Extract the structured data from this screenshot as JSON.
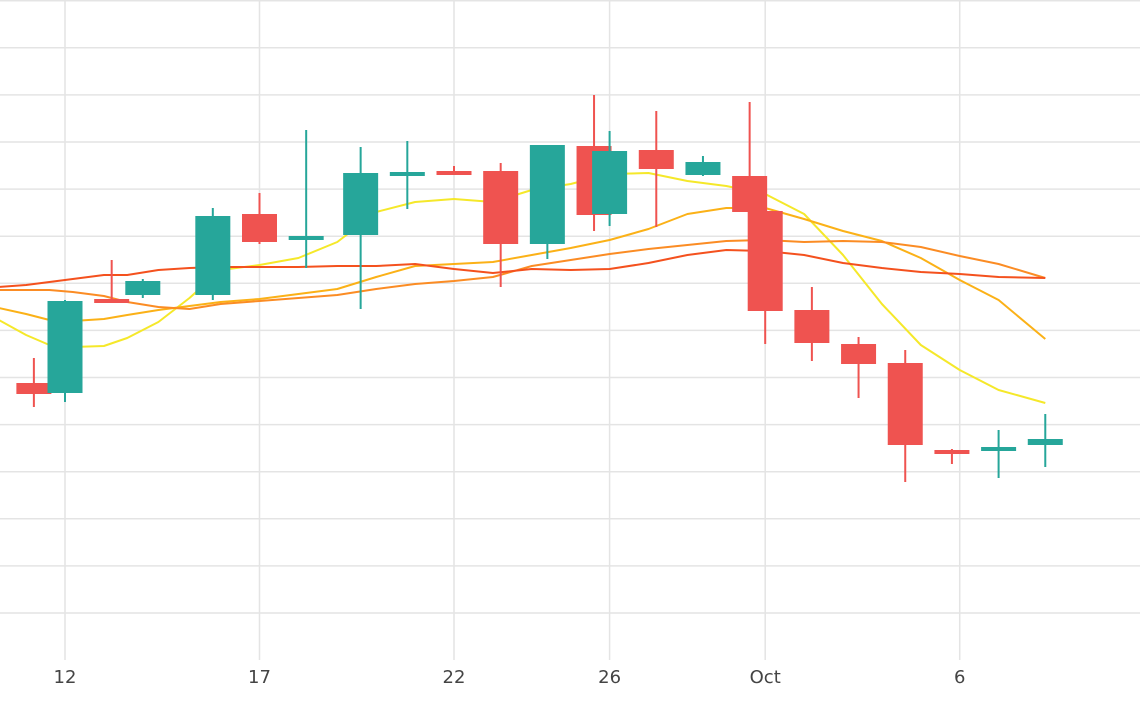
{
  "chart_data": {
    "type": "candlestick",
    "x_tick_labels": [
      "12",
      "17",
      "22",
      "26",
      "Oct",
      "6"
    ],
    "x_tick_days": [
      12,
      17,
      22,
      26,
      30,
      35
    ],
    "grid": true,
    "legend": "none",
    "colors": {
      "up": "#26a69a",
      "down": "#ef5350",
      "ma_fast": "#f5e82a",
      "ma_mid": "#fbb117",
      "ma_slow": "#fb8c24",
      "ma_slowest": "#f4511e",
      "grid": "#e4e4e4"
    },
    "ylim": [
      0,
      660
    ],
    "candles": [
      {
        "day": 11.2,
        "open": 277,
        "close": 266,
        "high": 302,
        "low": 253
      },
      {
        "day": 12,
        "open": 267,
        "close": 359,
        "high": 360,
        "low": 258
      },
      {
        "day": 13.2,
        "open": 361,
        "close": 359,
        "high": 400,
        "low": 358
      },
      {
        "day": 14,
        "open": 365,
        "close": 379,
        "high": 381,
        "low": 362
      },
      {
        "day": 15.8,
        "open": 365,
        "close": 444,
        "high": 452,
        "low": 360
      },
      {
        "day": 17,
        "open": 446,
        "close": 418,
        "high": 467,
        "low": 416
      },
      {
        "day": 18.2,
        "open": 421,
        "close": 424,
        "high": 530,
        "low": 392
      },
      {
        "day": 19.6,
        "open": 425,
        "close": 487,
        "high": 513,
        "low": 351
      },
      {
        "day": 20.8,
        "open": 486,
        "close": 488,
        "high": 519,
        "low": 451
      },
      {
        "day": 22,
        "open": 489,
        "close": 486,
        "high": 494,
        "low": 486
      },
      {
        "day": 23.2,
        "open": 489,
        "close": 416,
        "high": 497,
        "low": 373
      },
      {
        "day": 24.4,
        "open": 416,
        "close": 515,
        "high": 515,
        "low": 401
      },
      {
        "day": 25.6,
        "open": 514,
        "close": 445,
        "high": 565,
        "low": 429
      },
      {
        "day": 26,
        "open": 446,
        "close": 509,
        "high": 529,
        "low": 434
      },
      {
        "day": 27.2,
        "open": 510,
        "close": 491,
        "high": 549,
        "low": 433
      },
      {
        "day": 28.4,
        "open": 485,
        "close": 498,
        "high": 504,
        "low": 484
      },
      {
        "day": 29.6,
        "open": 484,
        "close": 448,
        "high": 558,
        "low": 419
      },
      {
        "day": 30,
        "open": 449,
        "close": 349,
        "high": 462,
        "low": 316
      },
      {
        "day": 31.2,
        "open": 350,
        "close": 317,
        "high": 373,
        "low": 299
      },
      {
        "day": 32.4,
        "open": 316,
        "close": 296,
        "high": 323,
        "low": 262
      },
      {
        "day": 33.6,
        "open": 297,
        "close": 215,
        "high": 310,
        "low": 178
      },
      {
        "day": 34.8,
        "open": 210,
        "close": 206,
        "high": 211,
        "low": 196
      },
      {
        "day": 36,
        "open": 213,
        "close": 213,
        "high": 230,
        "low": 182
      },
      {
        "day": 37.2,
        "open": 215,
        "close": 221,
        "high": 246,
        "low": 193
      }
    ],
    "series": [
      {
        "x": [
          10.3,
          11,
          11.6,
          12.2,
          13,
          13.6,
          14.4,
          15.2,
          16,
          17,
          18,
          19,
          20,
          21,
          22,
          23,
          24,
          25,
          26,
          27,
          28,
          29,
          30,
          31,
          32,
          33,
          34,
          35,
          36,
          37.2
        ],
        "y": [
          340,
          325,
          315,
          313,
          314,
          322,
          338,
          362,
          390,
          395,
          402,
          418,
          448,
          458,
          461,
          458,
          470,
          476,
          486,
          487,
          479,
          474,
          466,
          446,
          405,
          356,
          315,
          290,
          270,
          257
        ]
      },
      {
        "x": [
          10.3,
          11,
          11.6,
          12.2,
          13,
          13.6,
          14.4,
          15.2,
          16,
          17,
          18,
          19,
          20,
          21,
          22,
          23,
          24,
          25,
          26,
          27,
          28,
          29,
          30,
          31,
          32,
          33,
          34,
          35,
          36,
          37.2
        ],
        "y": [
          352,
          346,
          340,
          339,
          341,
          345,
          350,
          354,
          358,
          361,
          366,
          371,
          383,
          394,
          396,
          398,
          405,
          412,
          420,
          431,
          446,
          452,
          452,
          441,
          429,
          419,
          402,
          380,
          360,
          321
        ]
      },
      {
        "x": [
          10.3,
          11,
          11.6,
          12.2,
          13,
          13.6,
          14.4,
          15.2,
          16,
          17,
          18,
          19,
          20,
          21,
          22,
          23,
          24,
          25,
          26,
          27,
          28,
          29,
          30,
          31,
          32,
          33,
          34,
          35,
          36,
          37.2
        ],
        "y": [
          370,
          370,
          370,
          368,
          364,
          358,
          353,
          351,
          356,
          359,
          362,
          365,
          371,
          376,
          379,
          383,
          394,
          400,
          406,
          411,
          415,
          419,
          420,
          418,
          419,
          418,
          413,
          404,
          396,
          382
        ]
      },
      {
        "x": [
          10.3,
          11,
          11.6,
          12.2,
          13,
          13.6,
          14.4,
          15.2,
          16,
          17,
          18,
          19,
          20,
          21,
          22,
          23,
          24,
          25,
          26,
          27,
          28,
          29,
          30,
          31,
          32,
          33,
          34,
          35,
          36,
          37.2
        ],
        "y": [
          373,
          375,
          378,
          381,
          385,
          385,
          390,
          392,
          393,
          393,
          393,
          394,
          394,
          396,
          391,
          387,
          391,
          390,
          391,
          397,
          405,
          410,
          409,
          405,
          397,
          392,
          388,
          386,
          383,
          382
        ]
      }
    ]
  }
}
